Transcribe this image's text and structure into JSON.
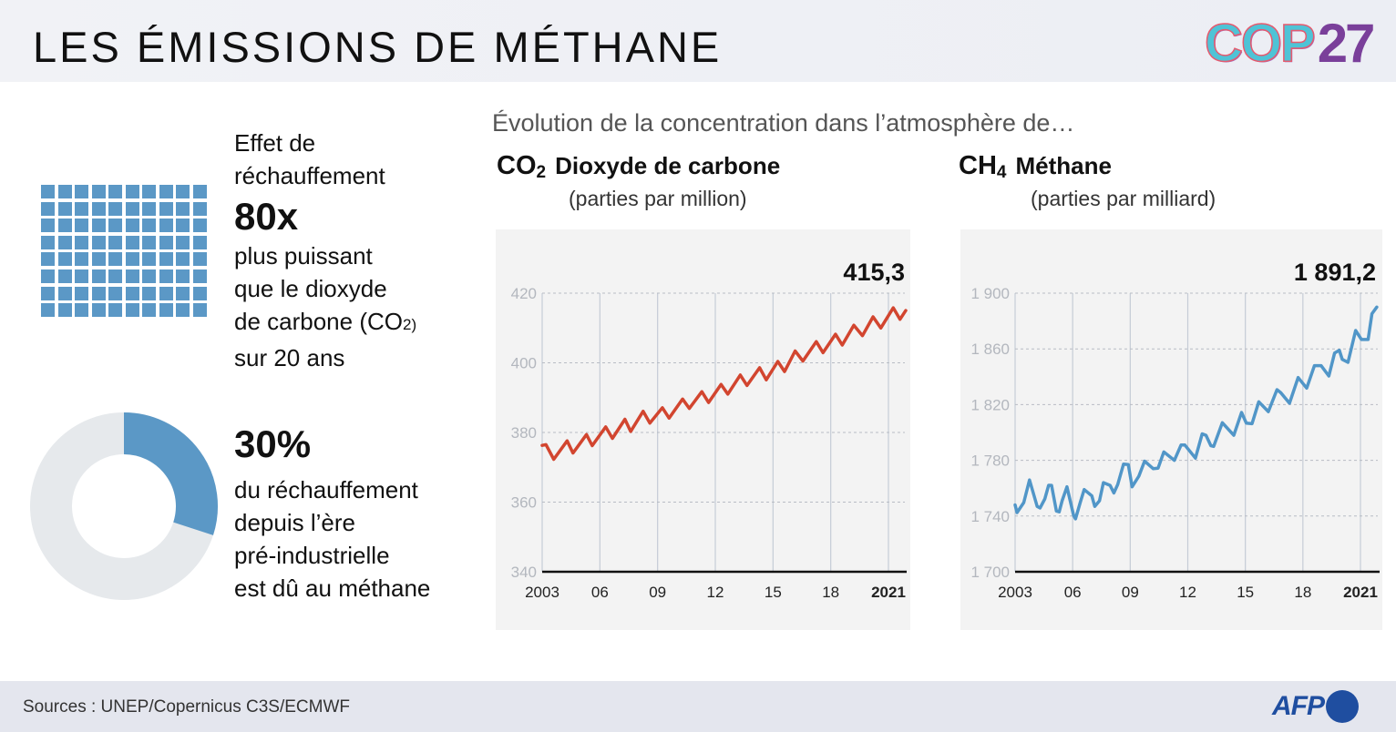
{
  "header": {
    "title": "LES ÉMISSIONS DE MÉTHANE",
    "logo_text": "COP27",
    "logo_letters": "COP",
    "logo_number": "27"
  },
  "left": {
    "waffle": {
      "count": 80,
      "color": "#5b98c6"
    },
    "warming_intro": "Effet de réchauffement",
    "warming_factor": "80x",
    "warming_lines": [
      "plus puissant",
      "que le dioxyde",
      "de carbone (CO",
      "2)",
      "sur 20 ans"
    ],
    "donut": {
      "share": 0.3,
      "color": "#5b98c6",
      "rest_color": "#e6e9ec"
    },
    "share_value": "30%",
    "share_lines": [
      "du réchauffement",
      "depuis l’ère",
      "pré-industrielle",
      "est dû au méthane"
    ]
  },
  "subtitle": "Évolution de la concentration dans l’atmosphère de…",
  "chart_data": [
    {
      "type": "line",
      "formula": "CO",
      "formula_sub": "2",
      "title": "Dioxyde de carbone",
      "unit": "(parties par million)",
      "latest_label": "415,3",
      "color": "#d2452f",
      "ylim": [
        340,
        420
      ],
      "yticks": [
        340,
        360,
        380,
        400,
        420
      ],
      "ytick_labels": [
        "340",
        "360",
        "380",
        "400",
        "420"
      ],
      "xlim": [
        2003,
        2021.9
      ],
      "xticks": [
        2003,
        2006,
        2009,
        2012,
        2015,
        2018,
        2021
      ],
      "xtick_labels": [
        "2003",
        "06",
        "09",
        "12",
        "15",
        "18",
        "2021"
      ],
      "points": [
        [
          2003,
          376.3
        ],
        [
          2003.2,
          376.5
        ],
        [
          2003.6,
          372.3
        ],
        [
          2004.3,
          377.6
        ],
        [
          2004.6,
          374.1
        ],
        [
          2005.3,
          379.4
        ],
        [
          2005.6,
          376.2
        ],
        [
          2006.3,
          381.6
        ],
        [
          2006.65,
          378.3
        ],
        [
          2007.3,
          383.8
        ],
        [
          2007.6,
          380.3
        ],
        [
          2008.25,
          386.1
        ],
        [
          2008.6,
          382.7
        ],
        [
          2009.25,
          387.1
        ],
        [
          2009.6,
          384.1
        ],
        [
          2010.3,
          389.6
        ],
        [
          2010.65,
          386.9
        ],
        [
          2011.3,
          391.7
        ],
        [
          2011.65,
          388.6
        ],
        [
          2012.3,
          393.8
        ],
        [
          2012.65,
          391.0
        ],
        [
          2013.3,
          396.5
        ],
        [
          2013.65,
          393.5
        ],
        [
          2014.3,
          398.6
        ],
        [
          2014.65,
          395.1
        ],
        [
          2015.25,
          400.4
        ],
        [
          2015.6,
          397.5
        ],
        [
          2016.15,
          403.4
        ],
        [
          2016.55,
          400.5
        ],
        [
          2017.25,
          406.1
        ],
        [
          2017.6,
          402.9
        ],
        [
          2018.25,
          408.2
        ],
        [
          2018.6,
          405.1
        ],
        [
          2019.2,
          410.8
        ],
        [
          2019.65,
          407.8
        ],
        [
          2020.2,
          413.2
        ],
        [
          2020.6,
          410.0
        ],
        [
          2021.25,
          415.8
        ],
        [
          2021.6,
          412.5
        ],
        [
          2021.9,
          415.0
        ]
      ]
    },
    {
      "type": "line",
      "formula": "CH",
      "formula_sub": "4",
      "title": "Méthane",
      "unit": "(parties par milliard)",
      "latest_label": "1 891,2",
      "color": "#5196c8",
      "ylim": [
        1700,
        1900
      ],
      "yticks": [
        1700,
        1740,
        1780,
        1820,
        1860,
        1900
      ],
      "ytick_labels": [
        "1 700",
        "1 740",
        "1 780",
        "1 820",
        "1 860",
        "1 900"
      ],
      "xlim": [
        2003,
        2021.9
      ],
      "xticks": [
        2003,
        2006,
        2009,
        2012,
        2015,
        2018,
        2021
      ],
      "xtick_labels": [
        "2003",
        "06",
        "09",
        "12",
        "15",
        "18",
        "2021"
      ],
      "points": [
        [
          2003,
          1748
        ],
        [
          2003.1,
          1742.5
        ],
        [
          2003.45,
          1749.7
        ],
        [
          2003.75,
          1765.9
        ],
        [
          2004.15,
          1746.9
        ],
        [
          2004.3,
          1745.8
        ],
        [
          2004.55,
          1752.3
        ],
        [
          2004.75,
          1762.1
        ],
        [
          2004.9,
          1762
        ],
        [
          2005.15,
          1743.6
        ],
        [
          2005.3,
          1743
        ],
        [
          2005.45,
          1751
        ],
        [
          2005.7,
          1761
        ],
        [
          2006.05,
          1740.4
        ],
        [
          2006.15,
          1738
        ],
        [
          2006.4,
          1750
        ],
        [
          2006.6,
          1759
        ],
        [
          2007.0,
          1754.5
        ],
        [
          2007.15,
          1746.9
        ],
        [
          2007.4,
          1751
        ],
        [
          2007.6,
          1764
        ],
        [
          2007.95,
          1762
        ],
        [
          2008.15,
          1756.6
        ],
        [
          2008.35,
          1762.6
        ],
        [
          2008.65,
          1777.3
        ],
        [
          2008.9,
          1777
        ],
        [
          2009.1,
          1761
        ],
        [
          2009.45,
          1768.6
        ],
        [
          2009.75,
          1779.4
        ],
        [
          2010.2,
          1774
        ],
        [
          2010.45,
          1774.4
        ],
        [
          2010.75,
          1786
        ],
        [
          2011.3,
          1780
        ],
        [
          2011.65,
          1791
        ],
        [
          2011.85,
          1791
        ],
        [
          2012.4,
          1781.6
        ],
        [
          2012.75,
          1799
        ],
        [
          2012.95,
          1798
        ],
        [
          2013.2,
          1790.5
        ],
        [
          2013.35,
          1790
        ],
        [
          2013.8,
          1807
        ],
        [
          2014.4,
          1798
        ],
        [
          2014.8,
          1814.4
        ],
        [
          2015.05,
          1806.7
        ],
        [
          2015.35,
          1806.3
        ],
        [
          2015.7,
          1822
        ],
        [
          2016.2,
          1815
        ],
        [
          2016.65,
          1830.7
        ],
        [
          2016.85,
          1828.5
        ],
        [
          2017.3,
          1821
        ],
        [
          2017.75,
          1839.4
        ],
        [
          2018.2,
          1831.8
        ],
        [
          2018.6,
          1848
        ],
        [
          2018.95,
          1848
        ],
        [
          2019.35,
          1840.5
        ],
        [
          2019.65,
          1857
        ],
        [
          2019.9,
          1859
        ],
        [
          2020.05,
          1852.5
        ],
        [
          2020.35,
          1850.3
        ],
        [
          2020.75,
          1873.2
        ],
        [
          2021.05,
          1866.7
        ],
        [
          2021.4,
          1866.7
        ],
        [
          2021.6,
          1885.2
        ],
        [
          2021.85,
          1890
        ]
      ]
    }
  ],
  "footer": {
    "sources": "Sources : UNEP/Copernicus C3S/ECMWF",
    "logo_text": "AFP"
  }
}
